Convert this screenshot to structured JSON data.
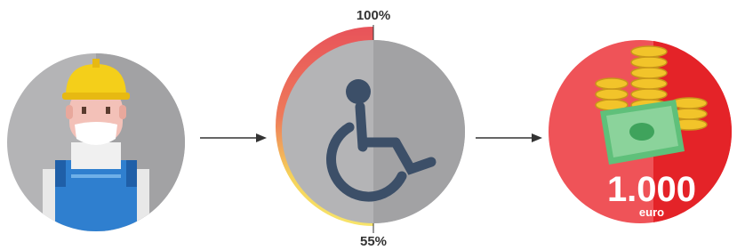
{
  "gauge": {
    "top_label": "100%",
    "bottom_label": "55%"
  },
  "reward": {
    "amount": "1.000",
    "unit": "euro"
  }
}
